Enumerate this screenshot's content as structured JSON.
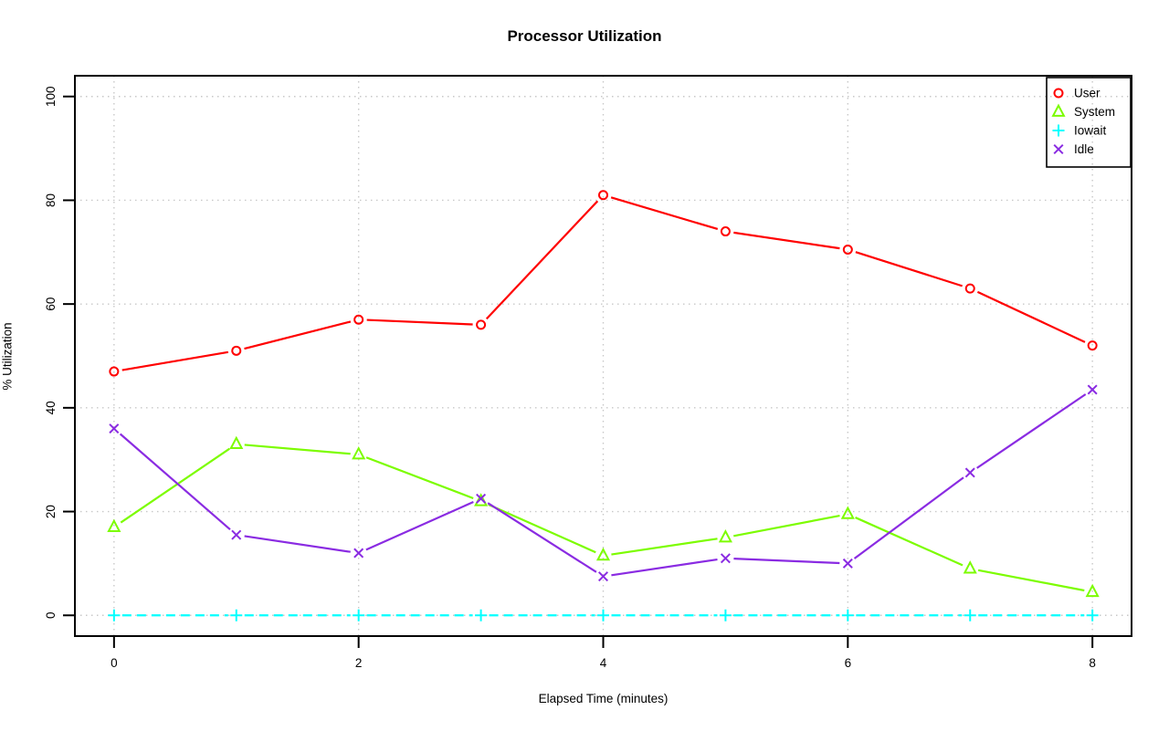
{
  "chart_data": {
    "type": "line",
    "title": "Processor Utilization",
    "xlabel": "Elapsed Time (minutes)",
    "ylabel": "% Utilization",
    "x": [
      0,
      1,
      2,
      3,
      4,
      5,
      6,
      7,
      8
    ],
    "series": [
      {
        "name": "User",
        "color": "#FF0000",
        "marker": "circle",
        "line": "solid",
        "values": [
          47,
          51,
          57,
          56,
          81,
          74,
          70.5,
          63,
          52
        ]
      },
      {
        "name": "System",
        "color": "#7CFC00",
        "marker": "triangle",
        "line": "solid",
        "values": [
          17,
          33,
          31,
          22,
          11.5,
          15,
          19.5,
          9,
          4.5
        ]
      },
      {
        "name": "Iowait",
        "color": "#00FFFF",
        "marker": "plus",
        "line": "dashed",
        "values": [
          0,
          0,
          0,
          0,
          0,
          0,
          0,
          0,
          0
        ]
      },
      {
        "name": "Idle",
        "color": "#8A2BE2",
        "marker": "x",
        "line": "solid",
        "values": [
          36,
          15.5,
          12,
          22.5,
          7.5,
          11,
          10,
          27.5,
          43.5
        ]
      }
    ],
    "xticks": [
      0,
      2,
      4,
      6,
      8
    ],
    "yticks": [
      0,
      20,
      40,
      60,
      80,
      100
    ],
    "xlim": [
      0,
      8
    ],
    "ylim": [
      0,
      100
    ],
    "grid": true,
    "grid_color": "#C8C8C8",
    "axis_color": "#000000",
    "legend_position": "top-right"
  }
}
